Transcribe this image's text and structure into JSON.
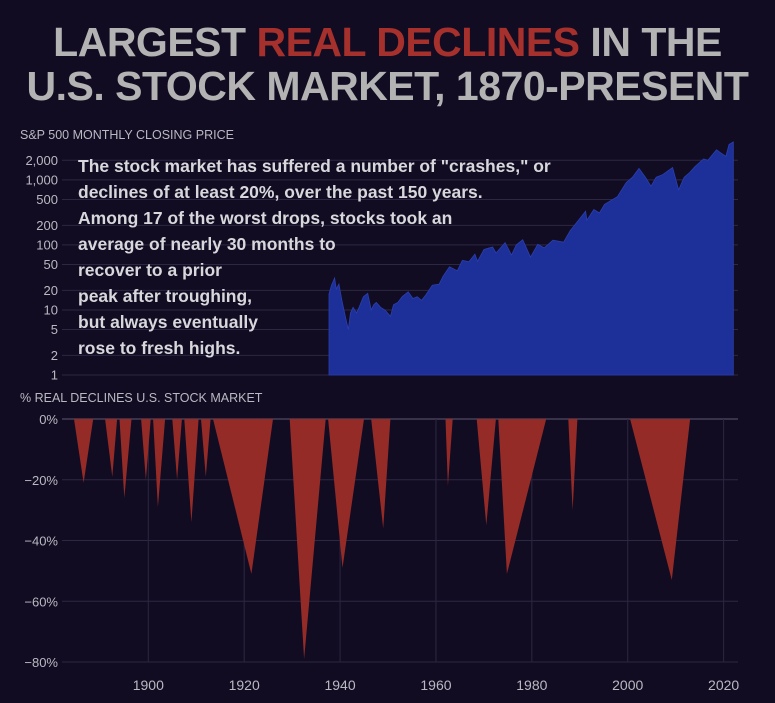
{
  "title": {
    "line1_pre": "LARGEST ",
    "line1_highlight": "REAL DECLINES",
    "line1_post": " IN THE",
    "line2": "U.S. STOCK MARKET, 1870-PRESENT"
  },
  "annotation": {
    "lines": [
      "The stock market has suffered a number of \"crashes,\" or",
      "declines of at least 20%, over the past 150 years.",
      "Among 17 of the worst drops, stocks took an",
      "average of nearly 30 months to",
      "recover to a prior",
      "peak after troughing,",
      "but always eventually",
      "rose to fresh highs."
    ]
  },
  "colors": {
    "background": "#120c22",
    "title": "#b3b3b3",
    "highlight": "#a5302c",
    "price_area": "#1d2f98",
    "decline_area": "#952b27",
    "grid": "#2c2742",
    "axis_text": "#b9b9c2"
  },
  "chart_data": [
    {
      "type": "area",
      "title": "S&P 500 MONTHLY CLOSING PRICE",
      "scale": "log",
      "y_ticks": [
        1,
        2,
        5,
        10,
        20,
        50,
        100,
        200,
        500,
        1000,
        2000
      ],
      "y_tick_labels": [
        "1",
        "2",
        "5",
        "10",
        "20",
        "50",
        "100",
        "200",
        "500",
        "1,000",
        "2,000"
      ],
      "ylim": [
        1,
        3200
      ],
      "xlim": [
        1866,
        2023
      ],
      "series": [
        {
          "name": "S&P 500",
          "x": [
            1928.0,
            1928.6,
            1929.3,
            1929.7,
            1930.3,
            1931.0,
            1931.8,
            1932.5,
            1933.0,
            1933.6,
            1934.4,
            1935.0,
            1936.0,
            1937.0,
            1937.8,
            1938.4,
            1939.0,
            1940.0,
            1941.0,
            1942.3,
            1943.0,
            1944.0,
            1945.0,
            1946.4,
            1947.5,
            1948.5,
            1949.5,
            1950.5,
            1952.0,
            1953.6,
            1954.5,
            1956.0,
            1957.8,
            1959.0,
            1960.5,
            1961.9,
            1962.5,
            1964.0,
            1966.0,
            1966.8,
            1968.9,
            1970.4,
            1971.5,
            1973.0,
            1974.8,
            1976.5,
            1978.0,
            1980.0,
            1982.5,
            1984.0,
            1987.6,
            1987.9,
            1989.5,
            1990.8,
            1992.0,
            1995.0,
            1997.0,
            1998.5,
            2000.0,
            2001.5,
            2002.8,
            2004.0,
            2005.5,
            2007.8,
            2009.2,
            2010.5,
            2011.8,
            2013.0,
            2015.0,
            2016.0,
            2018.0,
            2019.0,
            2020.2,
            2020.9,
            2021.9
          ],
          "values": [
            17.5,
            24,
            31,
            21,
            25,
            14,
            8,
            5,
            9,
            11,
            9,
            11,
            16,
            18,
            10,
            12,
            13,
            11,
            10,
            8,
            12,
            13,
            16,
            19,
            15,
            16,
            14,
            17,
            24,
            25,
            33,
            46,
            40,
            58,
            55,
            72,
            56,
            85,
            93,
            75,
            108,
            70,
            100,
            120,
            65,
            102,
            90,
            118,
            110,
            165,
            330,
            240,
            350,
            310,
            420,
            550,
            900,
            1100,
            1500,
            1100,
            800,
            1100,
            1200,
            1550,
            700,
            1100,
            1300,
            1600,
            2100,
            2000,
            2900,
            2600,
            2300,
            3500,
            4700
          ]
        }
      ]
    },
    {
      "type": "area",
      "title": "% REAL DECLINES U.S. STOCK MARKET",
      "ylim": [
        -80,
        0
      ],
      "y_ticks": [
        0,
        -20,
        -40,
        -60,
        -80
      ],
      "y_tick_labels": [
        "0%",
        "−20%",
        "−40%",
        "−60%",
        "−80%"
      ],
      "xlim": [
        1882,
        2023
      ],
      "x_ticks": [
        1900,
        1920,
        1940,
        1960,
        1980,
        2000,
        2020
      ],
      "x_tick_labels": [
        "1900",
        "1920",
        "1940",
        "1960",
        "1980",
        "2000",
        "2020"
      ],
      "series": [
        {
          "name": "Real declines",
          "episodes": [
            {
              "start": 1884.5,
              "trough": 1886.5,
              "end": 1888.5,
              "value": -21
            },
            {
              "start": 1891.0,
              "trough": 1892.5,
              "end": 1893.5,
              "value": -19
            },
            {
              "start": 1894.0,
              "trough": 1895.0,
              "end": 1896.5,
              "value": -26
            },
            {
              "start": 1898.5,
              "trough": 1899.5,
              "end": 1900.5,
              "value": -20
            },
            {
              "start": 1901.0,
              "trough": 1902.0,
              "end": 1903.5,
              "value": -29
            },
            {
              "start": 1905.0,
              "trough": 1906.0,
              "end": 1907.0,
              "value": -20
            },
            {
              "start": 1907.5,
              "trough": 1909.0,
              "end": 1910.5,
              "value": -34
            },
            {
              "start": 1911.0,
              "trough": 1912.0,
              "end": 1913.0,
              "value": -19
            },
            {
              "start": 1913.5,
              "trough": 1921.5,
              "end": 1926.0,
              "value": -51
            },
            {
              "start": 1929.5,
              "trough": 1932.5,
              "end": 1937.0,
              "value": -79
            },
            {
              "start": 1937.5,
              "trough": 1940.5,
              "end": 1945.0,
              "value": -49
            },
            {
              "start": 1946.5,
              "trough": 1949.0,
              "end": 1950.5,
              "value": -36
            },
            {
              "start": 1962.0,
              "trough": 1962.5,
              "end": 1963.5,
              "value": -22
            },
            {
              "start": 1968.5,
              "trough": 1970.5,
              "end": 1972.5,
              "value": -35
            },
            {
              "start": 1973.0,
              "trough": 1974.8,
              "end": 1983.0,
              "value": -51
            },
            {
              "start": 1987.6,
              "trough": 1988.5,
              "end": 1989.5,
              "value": -30
            },
            {
              "start": 2000.5,
              "trough": 2009.2,
              "end": 2013.0,
              "value": -53
            }
          ]
        }
      ]
    }
  ]
}
